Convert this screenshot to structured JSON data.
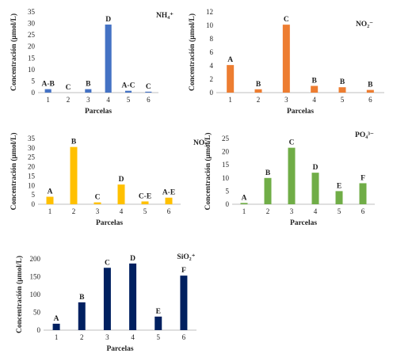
{
  "chart_data": [
    {
      "type": "bar",
      "title": "NH₄⁺",
      "xlabel": "Parcelas",
      "ylabel": "Concentración (µmol/L)",
      "categories": [
        "1",
        "2",
        "3",
        "4",
        "5",
        "6"
      ],
      "values": [
        1.5,
        0,
        1.5,
        29.5,
        0.8,
        0.2
      ],
      "letters": [
        "A-B",
        "C",
        "B",
        "D",
        "A-C",
        "C"
      ],
      "ylim": [
        0,
        35
      ],
      "yticks": [
        "0",
        "5",
        "10",
        "15",
        "20",
        "25",
        "30",
        "35"
      ],
      "grid": false,
      "color": "#4472C4"
    },
    {
      "type": "bar",
      "title": "NO₂⁻",
      "xlabel": "Parcelas",
      "ylabel": "Concentración (µmol/L)",
      "categories": [
        "1",
        "2",
        "3",
        "4",
        "5",
        "6"
      ],
      "values": [
        4.1,
        0.5,
        10.1,
        1.0,
        0.8,
        0.4
      ],
      "letters": [
        "A",
        "B",
        "C",
        "B",
        "B",
        "B"
      ],
      "ylim": [
        0,
        12
      ],
      "yticks": [
        "0",
        "2",
        "4",
        "6",
        "8",
        "10",
        "12"
      ],
      "grid": false,
      "color": "#ED7D31"
    },
    {
      "type": "bar",
      "title": "NO₃⁻",
      "xlabel": "Parcelas",
      "ylabel": "Concentración (µmol/L)",
      "categories": [
        "1",
        "2",
        "3",
        "4",
        "5",
        "6"
      ],
      "values": [
        4,
        30.5,
        1,
        10.5,
        1.5,
        3.5
      ],
      "letters": [
        "A",
        "B",
        "C",
        "D",
        "C-E",
        "A-E"
      ],
      "ylim": [
        0,
        35
      ],
      "yticks": [
        "0",
        "5",
        "10",
        "15",
        "20",
        "25",
        "30",
        "35"
      ],
      "grid": false,
      "color": "#FFC000"
    },
    {
      "type": "bar",
      "title": "PO₄³⁻",
      "xlabel": "Parcelas",
      "ylabel": "Concentración (µmol/L)",
      "categories": [
        "1",
        "2",
        "3",
        "4",
        "5",
        "6"
      ],
      "values": [
        0.5,
        10,
        21.5,
        12,
        5,
        8
      ],
      "letters": [
        "A",
        "B",
        "C",
        "D",
        "E",
        "F"
      ],
      "ylim": [
        0,
        25
      ],
      "yticks": [
        "0",
        "5",
        "10",
        "15",
        "20",
        "25"
      ],
      "grid": false,
      "color": "#70AD47"
    },
    {
      "type": "bar",
      "title": "SiO₂⁺",
      "xlabel": "Parcelas",
      "ylabel": "Concentración (µmol/L)",
      "categories": [
        "1",
        "2",
        "3",
        "4",
        "5",
        "6"
      ],
      "values": [
        18,
        78,
        175,
        187,
        38,
        153
      ],
      "letters": [
        "A",
        "B",
        "C",
        "D",
        "E",
        "F"
      ],
      "ylim": [
        0,
        200
      ],
      "yticks": [
        "0",
        "50",
        "100",
        "150",
        "200"
      ],
      "grid": false,
      "color": "#002060"
    }
  ]
}
